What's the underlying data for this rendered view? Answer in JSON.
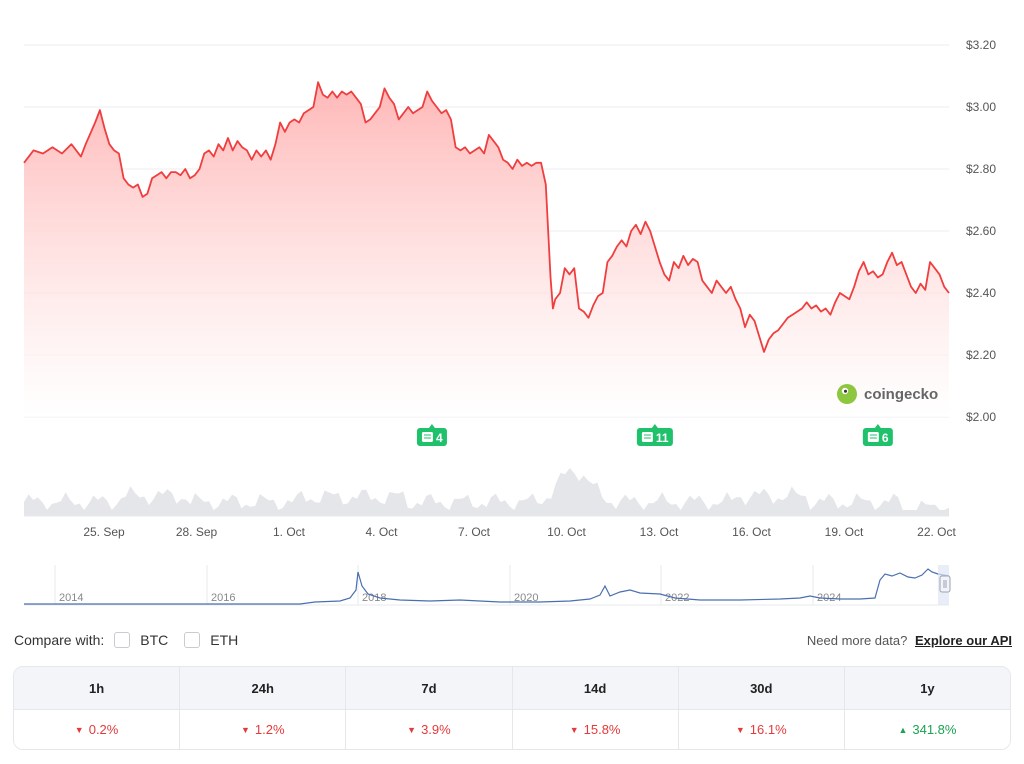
{
  "chart_data": {
    "type": "line",
    "y_axis": {
      "position": "right",
      "ticks": [
        "$2.00",
        "$2.20",
        "$2.40",
        "$2.60",
        "$2.80",
        "$3.00",
        "$3.20"
      ],
      "range": [
        2.0,
        3.2
      ]
    },
    "x_axis": {
      "ticks": [
        "25. Sep",
        "28. Sep",
        "1. Oct",
        "4. Oct",
        "7. Oct",
        "10. Oct",
        "13. Oct",
        "16. Oct",
        "19. Oct",
        "22. Oct"
      ]
    },
    "grid": true,
    "colors": {
      "line": "#f03e3e",
      "area_top": "#ffb3b3",
      "volume": "#e4e6ea",
      "navigator": "#4a6fb0"
    },
    "series": [
      {
        "values": [
          [
            0,
            2.82
          ],
          [
            2,
            2.86
          ],
          [
            4,
            2.85
          ],
          [
            6,
            2.87
          ],
          [
            8,
            2.85
          ],
          [
            10,
            2.88
          ],
          [
            12,
            2.84
          ],
          [
            13,
            2.88
          ],
          [
            15,
            2.95
          ],
          [
            16,
            2.99
          ],
          [
            17,
            2.93
          ],
          [
            18,
            2.88
          ],
          [
            19,
            2.86
          ],
          [
            20,
            2.85
          ],
          [
            21,
            2.77
          ],
          [
            22,
            2.75
          ],
          [
            23,
            2.74
          ],
          [
            24,
            2.75
          ],
          [
            25,
            2.71
          ],
          [
            26,
            2.72
          ],
          [
            27,
            2.77
          ],
          [
            28,
            2.78
          ],
          [
            29,
            2.79
          ],
          [
            30,
            2.77
          ],
          [
            31,
            2.79
          ],
          [
            32,
            2.79
          ],
          [
            33,
            2.78
          ],
          [
            34,
            2.8
          ],
          [
            35,
            2.77
          ],
          [
            36,
            2.78
          ],
          [
            37,
            2.8
          ],
          [
            38,
            2.85
          ],
          [
            39,
            2.86
          ],
          [
            40,
            2.84
          ],
          [
            41,
            2.88
          ],
          [
            42,
            2.86
          ],
          [
            43,
            2.9
          ],
          [
            44,
            2.86
          ],
          [
            45,
            2.89
          ],
          [
            46,
            2.87
          ],
          [
            47,
            2.86
          ],
          [
            48,
            2.83
          ],
          [
            49,
            2.86
          ],
          [
            50,
            2.84
          ],
          [
            51,
            2.86
          ],
          [
            52,
            2.83
          ],
          [
            53,
            2.88
          ],
          [
            54,
            2.95
          ],
          [
            55,
            2.92
          ],
          [
            56,
            2.95
          ],
          [
            57,
            2.96
          ],
          [
            58,
            2.95
          ],
          [
            59,
            2.98
          ],
          [
            60,
            2.99
          ],
          [
            61,
            3.0
          ],
          [
            62,
            3.08
          ],
          [
            63,
            3.04
          ],
          [
            64,
            3.03
          ],
          [
            65,
            3.05
          ],
          [
            66,
            3.03
          ],
          [
            67,
            3.05
          ],
          [
            68,
            3.04
          ],
          [
            69,
            3.05
          ],
          [
            70,
            3.03
          ],
          [
            71,
            3.01
          ],
          [
            72,
            2.95
          ],
          [
            73,
            2.96
          ],
          [
            74,
            2.98
          ],
          [
            75,
            3.0
          ],
          [
            76,
            3.06
          ],
          [
            77,
            3.03
          ],
          [
            78,
            3.01
          ],
          [
            79,
            2.96
          ],
          [
            80,
            2.98
          ],
          [
            81,
            3.0
          ],
          [
            82,
            2.98
          ],
          [
            83,
            2.99
          ],
          [
            84,
            3.0
          ],
          [
            85,
            3.05
          ],
          [
            86,
            3.02
          ],
          [
            87,
            3.0
          ],
          [
            88,
            2.98
          ],
          [
            89,
            2.99
          ],
          [
            90,
            2.96
          ],
          [
            91,
            2.87
          ],
          [
            92,
            2.86
          ],
          [
            93,
            2.87
          ],
          [
            94,
            2.85
          ],
          [
            95,
            2.86
          ],
          [
            96,
            2.87
          ],
          [
            97,
            2.85
          ],
          [
            98,
            2.91
          ],
          [
            99,
            2.89
          ],
          [
            100,
            2.87
          ],
          [
            101,
            2.83
          ],
          [
            102,
            2.82
          ],
          [
            103,
            2.8
          ],
          [
            104,
            2.83
          ],
          [
            105,
            2.81
          ],
          [
            106,
            2.82
          ],
          [
            107,
            2.81
          ],
          [
            108,
            2.82
          ],
          [
            109,
            2.82
          ],
          [
            110,
            2.75
          ],
          [
            110.5,
            2.6
          ],
          [
            111,
            2.45
          ],
          [
            111.5,
            2.35
          ],
          [
            112,
            2.38
          ],
          [
            113,
            2.4
          ],
          [
            114,
            2.48
          ],
          [
            115,
            2.46
          ],
          [
            116,
            2.48
          ],
          [
            117,
            2.35
          ],
          [
            118,
            2.34
          ],
          [
            119,
            2.32
          ],
          [
            120,
            2.36
          ],
          [
            121,
            2.39
          ],
          [
            122,
            2.4
          ],
          [
            123,
            2.5
          ],
          [
            124,
            2.52
          ],
          [
            125,
            2.55
          ],
          [
            126,
            2.57
          ],
          [
            127,
            2.55
          ],
          [
            128,
            2.6
          ],
          [
            129,
            2.62
          ],
          [
            130,
            2.59
          ],
          [
            131,
            2.63
          ],
          [
            132,
            2.6
          ],
          [
            133,
            2.55
          ],
          [
            134,
            2.5
          ],
          [
            135,
            2.46
          ],
          [
            136,
            2.44
          ],
          [
            137,
            2.5
          ],
          [
            138,
            2.48
          ],
          [
            139,
            2.52
          ],
          [
            140,
            2.49
          ],
          [
            141,
            2.51
          ],
          [
            142,
            2.5
          ],
          [
            143,
            2.44
          ],
          [
            144,
            2.42
          ],
          [
            145,
            2.4
          ],
          [
            146,
            2.44
          ],
          [
            147,
            2.42
          ],
          [
            148,
            2.4
          ],
          [
            149,
            2.42
          ],
          [
            150,
            2.38
          ],
          [
            151,
            2.35
          ],
          [
            152,
            2.29
          ],
          [
            153,
            2.33
          ],
          [
            154,
            2.31
          ],
          [
            155,
            2.26
          ],
          [
            156,
            2.21
          ],
          [
            157,
            2.25
          ],
          [
            158,
            2.27
          ],
          [
            159,
            2.28
          ],
          [
            160,
            2.3
          ],
          [
            161,
            2.32
          ],
          [
            162,
            2.33
          ],
          [
            163,
            2.34
          ],
          [
            164,
            2.35
          ],
          [
            165,
            2.37
          ],
          [
            166,
            2.35
          ],
          [
            167,
            2.36
          ],
          [
            168,
            2.34
          ],
          [
            169,
            2.35
          ],
          [
            170,
            2.33
          ],
          [
            171,
            2.37
          ],
          [
            172,
            2.4
          ],
          [
            173,
            2.39
          ],
          [
            174,
            2.38
          ],
          [
            175,
            2.42
          ],
          [
            176,
            2.47
          ],
          [
            177,
            2.5
          ],
          [
            178,
            2.46
          ],
          [
            179,
            2.47
          ],
          [
            180,
            2.45
          ],
          [
            181,
            2.46
          ],
          [
            182,
            2.5
          ],
          [
            183,
            2.53
          ],
          [
            184,
            2.49
          ],
          [
            185,
            2.5
          ],
          [
            186,
            2.46
          ],
          [
            187,
            2.42
          ],
          [
            188,
            2.4
          ],
          [
            189,
            2.43
          ],
          [
            190,
            2.41
          ],
          [
            191,
            2.5
          ],
          [
            192,
            2.48
          ],
          [
            193,
            2.46
          ],
          [
            194,
            2.42
          ],
          [
            195,
            2.4
          ]
        ]
      }
    ],
    "news_markers": [
      {
        "label": "4",
        "day": 86
      },
      {
        "label": "11",
        "day": 133
      },
      {
        "label": "6",
        "day": 180
      }
    ],
    "navigator": {
      "ticks": [
        "2014",
        "2016",
        "2018",
        "2020",
        "2022",
        "2024"
      ]
    },
    "watermark": "coingecko"
  },
  "compare": {
    "label": "Compare with:",
    "options": [
      "BTC",
      "ETH"
    ]
  },
  "api": {
    "prompt": "Need more data?",
    "link": "Explore our API"
  },
  "performance": [
    {
      "period": "1h",
      "change": "0.2%",
      "direction": "down"
    },
    {
      "period": "24h",
      "change": "1.2%",
      "direction": "down"
    },
    {
      "period": "7d",
      "change": "3.9%",
      "direction": "down"
    },
    {
      "period": "14d",
      "change": "15.8%",
      "direction": "down"
    },
    {
      "period": "30d",
      "change": "16.1%",
      "direction": "down"
    },
    {
      "period": "1y",
      "change": "341.8%",
      "direction": "up"
    }
  ]
}
